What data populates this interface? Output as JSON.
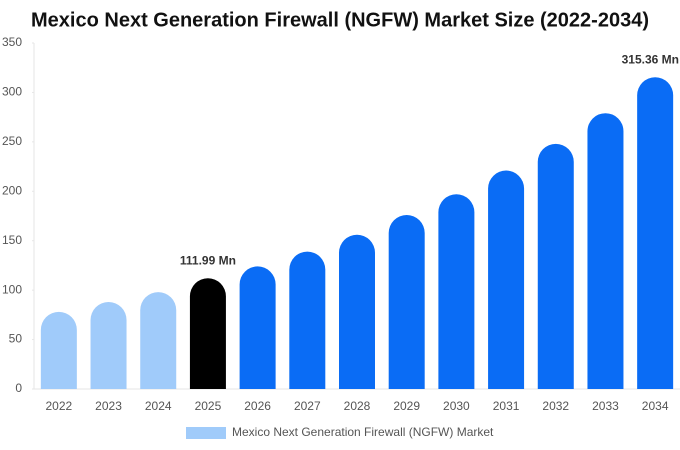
{
  "chart_data": {
    "type": "bar",
    "title": "Mexico Next Generation Firewall (NGFW) Market Size (2022-2034)",
    "categories": [
      "2022",
      "2023",
      "2024",
      "2025",
      "2026",
      "2027",
      "2028",
      "2029",
      "2030",
      "2031",
      "2032",
      "2033",
      "2034"
    ],
    "series": [
      {
        "name": "Mexico Next Generation Firewall (NGFW) Market",
        "color": "#a0cbfa",
        "colors": [
          "#a0cbfa",
          "#a0cbfa",
          "#a0cbfa",
          "#000000",
          "#0a6cf5",
          "#0a6cf5",
          "#0a6cf5",
          "#0a6cf5",
          "#0a6cf5",
          "#0a6cf5",
          "#0a6cf5",
          "#0a6cf5",
          "#0a6cf5"
        ],
        "values": [
          78,
          88,
          98,
          111.99,
          124,
          139,
          156,
          176,
          197,
          221,
          248,
          279,
          315.36
        ],
        "value_labels": [
          null,
          null,
          null,
          "111.99 Mn",
          null,
          null,
          null,
          null,
          null,
          null,
          null,
          null,
          "315.36 Mn"
        ]
      }
    ],
    "ylim": [
      0,
      350
    ],
    "yticks": [
      0,
      50,
      100,
      150,
      200,
      250,
      300,
      350
    ],
    "grid": false
  }
}
